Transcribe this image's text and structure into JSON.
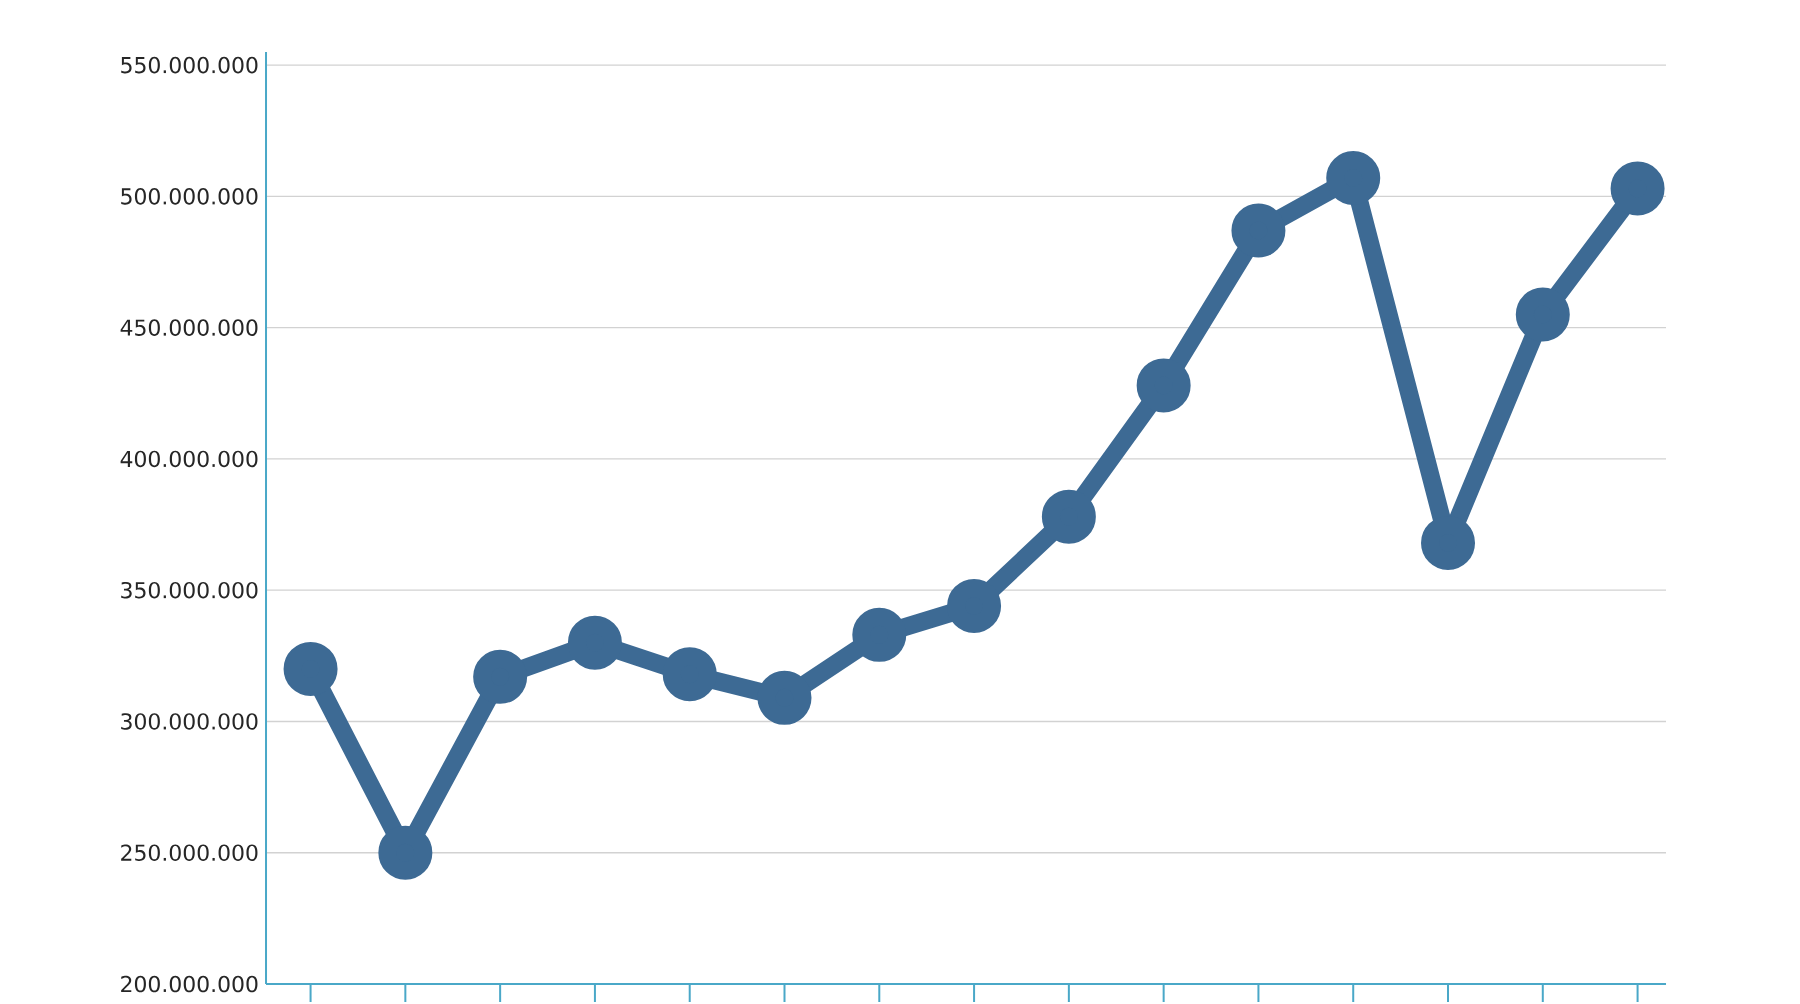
{
  "chart_data": {
    "type": "line",
    "categories": [
      null,
      null,
      null,
      null,
      null,
      null,
      null,
      null,
      null,
      null,
      null,
      null,
      null,
      null,
      null
    ],
    "series": [
      {
        "color": "#3d6a94",
        "values": [
          320000000,
          250000000,
          317000000,
          330000000,
          318000000,
          309000000,
          333000000,
          344000000,
          378000000,
          428000000,
          487000000,
          507000000,
          368000000,
          455000000,
          503000000
        ]
      }
    ],
    "ylim": [
      200000000,
      555000000
    ],
    "yticks": [
      {
        "value": 200000000,
        "label": "200.000.000"
      },
      {
        "value": 250000000,
        "label": "250.000.000"
      },
      {
        "value": 300000000,
        "label": "300.000.000"
      },
      {
        "value": 350000000,
        "label": "350.000.000"
      },
      {
        "value": 400000000,
        "label": "400.000.000"
      },
      {
        "value": 450000000,
        "label": "450.000.000"
      },
      {
        "value": 500000000,
        "label": "500.000.000"
      },
      {
        "value": 550000000,
        "label": "550.000.000"
      }
    ],
    "grid": "y",
    "marker": "circle",
    "line_style": "solid",
    "tick_labels": "y"
  }
}
